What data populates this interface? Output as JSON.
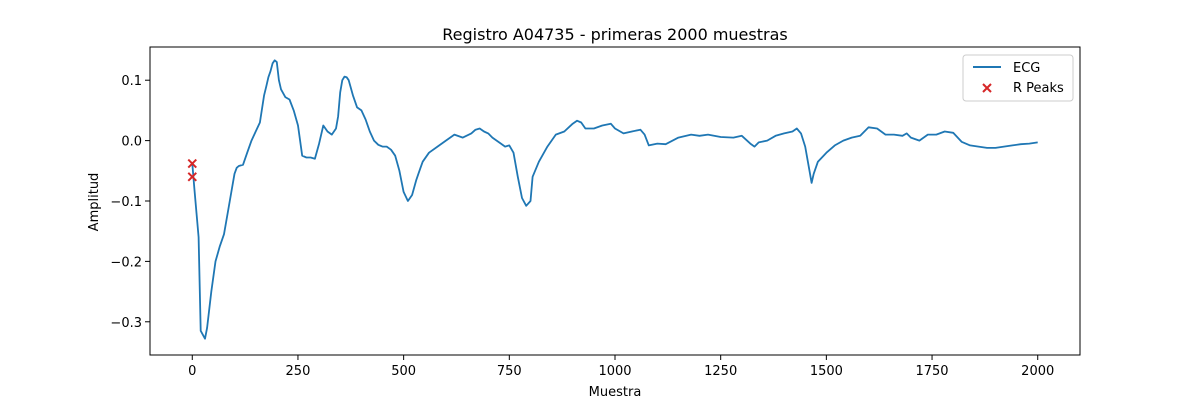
{
  "chart_data": {
    "type": "line",
    "title": "Registro A04735 - primeras 2000 muestras",
    "xlabel": "Muestra",
    "ylabel": "Amplitud",
    "xlim": [
      -100,
      2100
    ],
    "ylim": [
      -0.355,
      0.155
    ],
    "xticks": [
      0,
      250,
      500,
      750,
      1000,
      1250,
      1500,
      1750,
      2000
    ],
    "yticks": [
      -0.3,
      -0.2,
      -0.1,
      0.0,
      0.1
    ],
    "ytick_labels": [
      "−0.3",
      "−0.2",
      "−0.1",
      "0.0",
      "0.1"
    ],
    "grid": false,
    "legend_position": "upper right",
    "series": [
      {
        "name": "ECG",
        "color": "#1f77b4",
        "x": [
          0,
          5,
          10,
          15,
          20,
          30,
          35,
          45,
          55,
          65,
          75,
          85,
          95,
          100,
          105,
          110,
          120,
          130,
          140,
          150,
          160,
          170,
          175,
          180,
          185,
          190,
          195,
          200,
          205,
          210,
          220,
          230,
          240,
          250,
          260,
          270,
          280,
          290,
          300,
          310,
          320,
          330,
          340,
          345,
          350,
          355,
          360,
          365,
          370,
          380,
          390,
          400,
          410,
          420,
          430,
          440,
          450,
          460,
          470,
          480,
          490,
          500,
          510,
          520,
          530,
          535,
          540,
          545,
          550,
          560,
          580,
          600,
          620,
          640,
          660,
          670,
          680,
          690,
          700,
          710,
          730,
          740,
          750,
          760,
          770,
          780,
          790,
          800,
          805,
          820,
          840,
          860,
          880,
          900,
          910,
          920,
          930,
          950,
          970,
          990,
          1000,
          1020,
          1040,
          1060,
          1070,
          1080,
          1100,
          1120,
          1150,
          1180,
          1200,
          1220,
          1250,
          1280,
          1300,
          1320,
          1330,
          1340,
          1360,
          1380,
          1400,
          1420,
          1430,
          1440,
          1450,
          1460,
          1465,
          1470,
          1480,
          1500,
          1520,
          1540,
          1560,
          1580,
          1590,
          1600,
          1620,
          1640,
          1660,
          1680,
          1690,
          1700,
          1720,
          1740,
          1760,
          1780,
          1800,
          1820,
          1840,
          1860,
          1880,
          1900,
          1920,
          1940,
          1960,
          1980,
          2000
        ],
        "values": [
          -0.038,
          -0.08,
          -0.12,
          -0.16,
          -0.315,
          -0.328,
          -0.31,
          -0.25,
          -0.2,
          -0.175,
          -0.155,
          -0.115,
          -0.075,
          -0.055,
          -0.045,
          -0.042,
          -0.04,
          -0.02,
          0.0,
          0.015,
          0.03,
          0.075,
          0.09,
          0.105,
          0.115,
          0.128,
          0.133,
          0.13,
          0.1,
          0.085,
          0.072,
          0.068,
          0.05,
          0.025,
          -0.025,
          -0.028,
          -0.028,
          -0.03,
          -0.005,
          0.025,
          0.015,
          0.01,
          0.02,
          0.04,
          0.08,
          0.1,
          0.106,
          0.105,
          0.1,
          0.075,
          0.055,
          0.05,
          0.035,
          0.015,
          0.0,
          -0.007,
          -0.01,
          -0.01,
          -0.015,
          -0.025,
          -0.05,
          -0.085,
          -0.1,
          -0.09,
          -0.065,
          -0.055,
          -0.045,
          -0.035,
          -0.03,
          -0.02,
          -0.01,
          0.0,
          0.01,
          0.005,
          0.012,
          0.018,
          0.02,
          0.015,
          0.012,
          0.005,
          -0.005,
          -0.01,
          -0.008,
          -0.02,
          -0.06,
          -0.095,
          -0.108,
          -0.1,
          -0.06,
          -0.035,
          -0.01,
          0.01,
          0.015,
          0.028,
          0.033,
          0.03,
          0.02,
          0.02,
          0.025,
          0.028,
          0.02,
          0.012,
          0.015,
          0.018,
          0.01,
          -0.008,
          -0.005,
          -0.006,
          0.005,
          0.01,
          0.008,
          0.01,
          0.006,
          0.005,
          0.008,
          -0.005,
          -0.01,
          -0.003,
          0.0,
          0.008,
          0.012,
          0.015,
          0.02,
          0.012,
          -0.01,
          -0.05,
          -0.07,
          -0.055,
          -0.035,
          -0.02,
          -0.008,
          0.0,
          0.005,
          0.008,
          0.015,
          0.022,
          0.02,
          0.01,
          0.01,
          0.008,
          0.012,
          0.005,
          0.0,
          0.01,
          0.01,
          0.015,
          0.013,
          -0.002,
          -0.008,
          -0.01,
          -0.012,
          -0.012,
          -0.01,
          -0.008,
          -0.006,
          -0.005,
          -0.003
        ]
      }
    ],
    "markers": {
      "name": "R Peaks",
      "color": "#d62728",
      "symbol": "x",
      "x": [
        0,
        0
      ],
      "y": [
        -0.038,
        -0.06
      ]
    }
  }
}
